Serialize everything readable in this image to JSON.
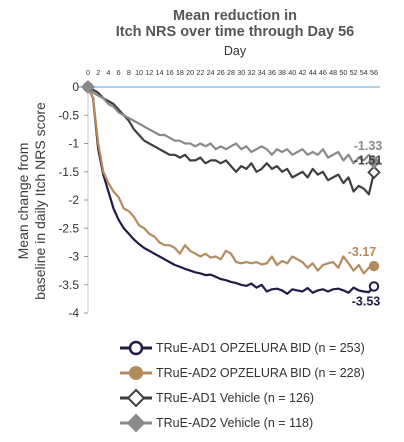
{
  "title_line1": "Mean reduction in",
  "title_line2": "Itch NRS over time through Day 56",
  "chart_data": {
    "type": "line",
    "title": "Mean reduction in Itch NRS over time through Day 56",
    "xlabel": "Day",
    "ylabel_line1": "Mean change from",
    "ylabel_line2": "baseline in daily Itch NRS score",
    "xlim": [
      0,
      56
    ],
    "ylim": [
      -4,
      0
    ],
    "x_ticks": [
      "0",
      "2",
      "4",
      "6",
      "8",
      "10",
      "12",
      "14",
      "16",
      "18",
      "20",
      "22",
      "24",
      "26",
      "28",
      "30",
      "32",
      "34",
      "36",
      "38",
      "40",
      "42",
      "44",
      "46",
      "48",
      "50",
      "52",
      "54",
      "56"
    ],
    "y_ticks": [
      "0",
      "-0.5",
      "-1",
      "-1.5",
      "-2",
      "-2.5",
      "-3",
      "-3.5",
      "-4"
    ],
    "legend_position": "bottom",
    "series": [
      {
        "name": "TRuE-AD1 OPZELURA BID (n = 253)",
        "color": "#1f1d45",
        "marker": "circle-open",
        "end_label": "-3.53",
        "values": [
          0,
          -0.2,
          -1.1,
          -1.55,
          -1.85,
          -2.15,
          -2.35,
          -2.5,
          -2.6,
          -2.7,
          -2.78,
          -2.85,
          -2.9,
          -2.95,
          -3.0,
          -3.05,
          -3.1,
          -3.15,
          -3.18,
          -3.22,
          -3.25,
          -3.28,
          -3.3,
          -3.33,
          -3.32,
          -3.36,
          -3.4,
          -3.42,
          -3.45,
          -3.47,
          -3.5,
          -3.52,
          -3.48,
          -3.55,
          -3.5,
          -3.62,
          -3.58,
          -3.57,
          -3.6,
          -3.66,
          -3.58,
          -3.6,
          -3.62,
          -3.56,
          -3.64,
          -3.6,
          -3.58,
          -3.62,
          -3.58,
          -3.57,
          -3.6,
          -3.64,
          -3.55,
          -3.6,
          -3.62,
          -3.63,
          -3.53
        ]
      },
      {
        "name": "TRuE-AD2 OPZELURA BID (n = 228)",
        "color": "#b38b5d",
        "marker": "circle-filled",
        "end_label": "-3.17",
        "values": [
          0,
          -0.2,
          -1.0,
          -1.5,
          -1.7,
          -1.85,
          -1.95,
          -2.15,
          -2.2,
          -2.3,
          -2.45,
          -2.5,
          -2.6,
          -2.65,
          -2.75,
          -2.8,
          -2.8,
          -2.85,
          -2.95,
          -2.8,
          -2.9,
          -2.95,
          -3.0,
          -2.95,
          -3.02,
          -3.0,
          -3.05,
          -2.9,
          -2.95,
          -3.1,
          -3.12,
          -3.1,
          -3.12,
          -3.1,
          -3.14,
          -3.12,
          -3.0,
          -3.15,
          -3.08,
          -3.12,
          -3.0,
          -3.05,
          -3.1,
          -3.2,
          -3.12,
          -3.25,
          -3.15,
          -3.12,
          -3.1,
          -3.2,
          -3.0,
          -3.12,
          -3.25,
          -3.15,
          -3.3,
          -3.2,
          -3.17
        ]
      },
      {
        "name": "TRuE-AD1 Vehicle (n = 126)",
        "color": "#3f3f3f",
        "marker": "diamond-open",
        "end_label": "-1.51",
        "values": [
          0,
          -0.05,
          -0.1,
          -0.2,
          -0.25,
          -0.3,
          -0.4,
          -0.5,
          -0.6,
          -0.75,
          -0.85,
          -0.95,
          -1.0,
          -1.05,
          -1.1,
          -1.15,
          -1.2,
          -1.2,
          -1.25,
          -1.2,
          -1.3,
          -1.3,
          -1.25,
          -1.35,
          -1.3,
          -1.3,
          -1.35,
          -1.3,
          -1.4,
          -1.5,
          -1.4,
          -1.45,
          -1.35,
          -1.5,
          -1.45,
          -1.35,
          -1.45,
          -1.4,
          -1.5,
          -1.45,
          -1.6,
          -1.55,
          -1.5,
          -1.6,
          -1.45,
          -1.55,
          -1.5,
          -1.65,
          -1.6,
          -1.55,
          -1.7,
          -1.6,
          -1.85,
          -1.75,
          -1.8,
          -1.9,
          -1.51
        ]
      },
      {
        "name": "TRuE-AD2 Vehicle (n = 118)",
        "color": "#8a8a8a",
        "marker": "diamond-filled",
        "end_label": "-1.33",
        "values": [
          0,
          -0.1,
          -0.15,
          -0.2,
          -0.3,
          -0.35,
          -0.45,
          -0.5,
          -0.55,
          -0.6,
          -0.65,
          -0.7,
          -0.75,
          -0.8,
          -0.85,
          -0.85,
          -0.9,
          -0.95,
          -0.95,
          -1.0,
          -1.0,
          -1.05,
          -1.0,
          -1.05,
          -1.0,
          -1.1,
          -1.05,
          -1.1,
          -1.05,
          -1.0,
          -1.1,
          -1.05,
          -1.15,
          -1.1,
          -1.05,
          -1.1,
          -1.2,
          -1.1,
          -1.15,
          -1.1,
          -1.2,
          -1.15,
          -1.1,
          -1.2,
          -1.15,
          -1.2,
          -1.1,
          -1.25,
          -1.2,
          -1.15,
          -1.3,
          -1.2,
          -1.35,
          -1.25,
          -1.3,
          -1.2,
          -1.33
        ]
      }
    ]
  }
}
